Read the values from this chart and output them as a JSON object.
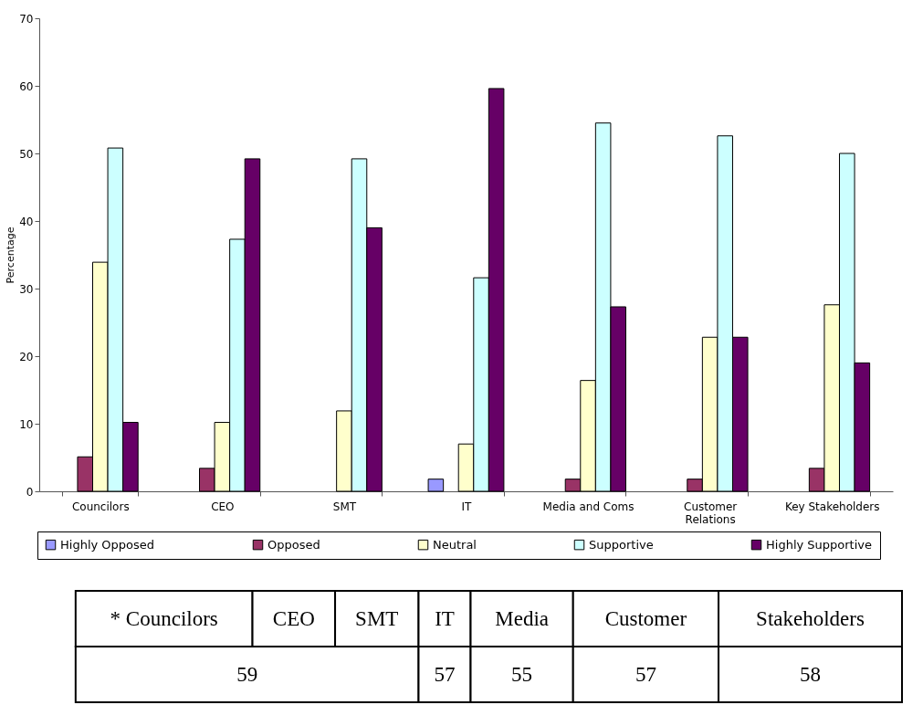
{
  "chart_data": {
    "type": "bar",
    "ylabel": "Percentage",
    "categories": [
      "Councilors",
      "CEO",
      "SMT",
      "IT",
      "Media and Coms",
      "Customer Relations",
      "Key Stakeholders"
    ],
    "series": [
      {
        "name": "Highly Opposed",
        "color": "#9999ff",
        "values": [
          null,
          null,
          null,
          1.8,
          null,
          null,
          null
        ]
      },
      {
        "name": "Opposed",
        "color": "#993366",
        "values": [
          5.1,
          3.4,
          null,
          null,
          1.8,
          1.8,
          3.4
        ]
      },
      {
        "name": "Neutral",
        "color": "#ffffcc",
        "values": [
          33.9,
          10.2,
          11.9,
          7.0,
          16.4,
          22.8,
          27.6
        ]
      },
      {
        "name": "Supportive",
        "color": "#ccffff",
        "values": [
          50.8,
          37.3,
          49.2,
          31.6,
          54.5,
          52.6,
          50.0
        ]
      },
      {
        "name": "Highly Supportive",
        "color": "#660066",
        "values": [
          10.2,
          49.2,
          39.0,
          59.6,
          27.3,
          22.8,
          19.0
        ]
      }
    ],
    "ylim": [
      0,
      70
    ],
    "yticks": [
      0,
      10,
      20,
      30,
      40,
      50,
      60,
      70
    ],
    "grid": false,
    "legend": "bottom",
    "annotations": [
      "* Councilors",
      "CEO",
      "SMT",
      "IT",
      "Media",
      "Customer",
      "Stakeholders",
      "59",
      "57",
      "55",
      "57",
      "58"
    ]
  }
}
